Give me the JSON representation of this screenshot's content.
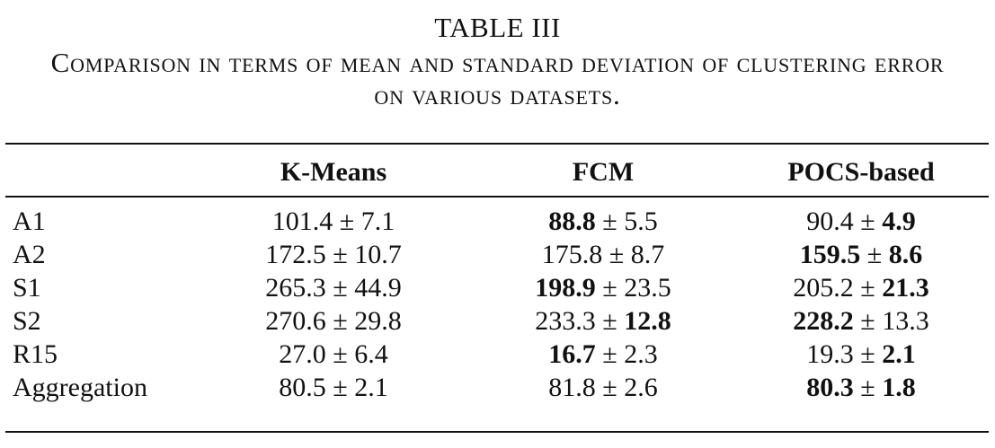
{
  "caption": {
    "label": "TABLE III",
    "text": "Comparison in terms of mean and standard deviation of clustering error on various datasets."
  },
  "table": {
    "headers": [
      "",
      "K-Means",
      "FCM",
      "POCS-based"
    ],
    "rows": [
      {
        "name": "A1",
        "cells": [
          {
            "mean": "101.4",
            "std": "7.1",
            "bold_mean": false,
            "bold_std": false
          },
          {
            "mean": "88.8",
            "std": "5.5",
            "bold_mean": true,
            "bold_std": false
          },
          {
            "mean": "90.4",
            "std": "4.9",
            "bold_mean": false,
            "bold_std": true
          }
        ]
      },
      {
        "name": "A2",
        "cells": [
          {
            "mean": "172.5",
            "std": "10.7",
            "bold_mean": false,
            "bold_std": false
          },
          {
            "mean": "175.8",
            "std": "8.7",
            "bold_mean": false,
            "bold_std": false
          },
          {
            "mean": "159.5",
            "std": "8.6",
            "bold_mean": true,
            "bold_std": true
          }
        ]
      },
      {
        "name": "S1",
        "cells": [
          {
            "mean": "265.3",
            "std": "44.9",
            "bold_mean": false,
            "bold_std": false
          },
          {
            "mean": "198.9",
            "std": "23.5",
            "bold_mean": true,
            "bold_std": false
          },
          {
            "mean": "205.2",
            "std": "21.3",
            "bold_mean": false,
            "bold_std": true
          }
        ]
      },
      {
        "name": "S2",
        "cells": [
          {
            "mean": "270.6",
            "std": "29.8",
            "bold_mean": false,
            "bold_std": false
          },
          {
            "mean": "233.3",
            "std": "12.8",
            "bold_mean": false,
            "bold_std": true
          },
          {
            "mean": "228.2",
            "std": "13.3",
            "bold_mean": true,
            "bold_std": false
          }
        ]
      },
      {
        "name": "R15",
        "cells": [
          {
            "mean": "27.0",
            "std": "6.4",
            "bold_mean": false,
            "bold_std": false
          },
          {
            "mean": "16.7",
            "std": "2.3",
            "bold_mean": true,
            "bold_std": false
          },
          {
            "mean": "19.3",
            "std": "2.1",
            "bold_mean": false,
            "bold_std": true
          }
        ]
      },
      {
        "name": "Aggregation",
        "cells": [
          {
            "mean": "80.5",
            "std": "2.1",
            "bold_mean": false,
            "bold_std": false
          },
          {
            "mean": "81.8",
            "std": "2.6",
            "bold_mean": false,
            "bold_std": false
          },
          {
            "mean": "80.3",
            "std": "1.8",
            "bold_mean": true,
            "bold_std": true
          }
        ]
      }
    ]
  }
}
